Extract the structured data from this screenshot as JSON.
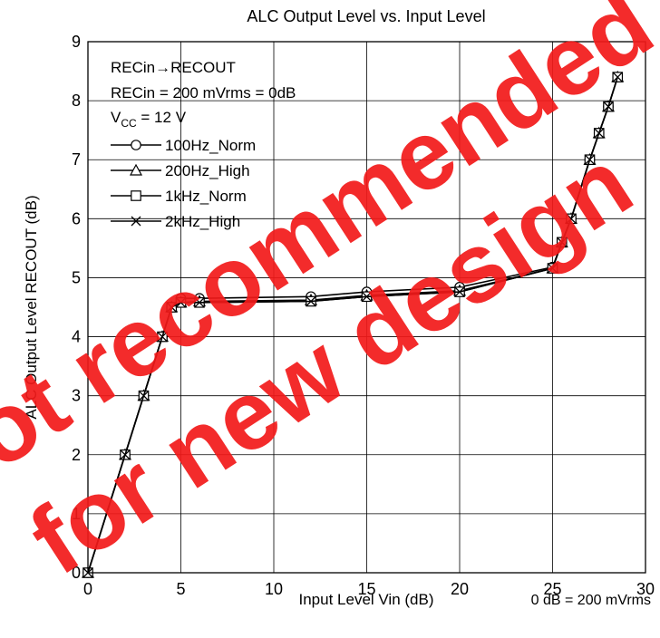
{
  "chart_data": {
    "type": "line",
    "title": "ALC Output Level vs. Input Level",
    "xlabel": "Input Level  Vin  (dB)",
    "xnote": "0 dB = 200 mVrms",
    "ylabel": "ALC Output Level  RECOUT  (dB)",
    "xlim": [
      0,
      30
    ],
    "ylim": [
      0,
      9
    ],
    "xticks": [
      0,
      5,
      10,
      15,
      20,
      25,
      30
    ],
    "yticks": [
      0,
      1,
      2,
      3,
      4,
      5,
      6,
      7,
      8,
      9
    ],
    "grid": true,
    "legend_position": "top-left",
    "conditions": {
      "line1": "RECin→RECOUT",
      "line2": "RECin = 200 mVrms = 0dB",
      "vcc_main": "V",
      "vcc_sub": "CC",
      "vcc_rest": " = 12 V"
    },
    "series": [
      {
        "name": "100Hz_Norm",
        "marker": "circle",
        "x": [
          0,
          2,
          3,
          4,
          4.5,
          5,
          6,
          12,
          15,
          20,
          25,
          25.5,
          26,
          27,
          27.5,
          28,
          28.5
        ],
        "y": [
          0,
          2.0,
          3.0,
          4.0,
          4.5,
          4.65,
          4.65,
          4.68,
          4.76,
          4.84,
          5.18,
          5.6,
          6.0,
          7.0,
          7.45,
          7.9,
          8.4
        ]
      },
      {
        "name": "200Hz_High",
        "marker": "triangle",
        "x": [
          0,
          2,
          3,
          4,
          4.5,
          5,
          6,
          12,
          15,
          20,
          25,
          25.5,
          26,
          27,
          27.5,
          28,
          28.5
        ],
        "y": [
          0,
          2.0,
          3.0,
          4.0,
          4.5,
          4.58,
          4.6,
          4.62,
          4.7,
          4.78,
          5.16,
          5.6,
          6.0,
          7.0,
          7.45,
          7.9,
          8.4
        ]
      },
      {
        "name": "1kHz_Norm",
        "marker": "square",
        "x": [
          0,
          2,
          3,
          4,
          4.5,
          5,
          6,
          12,
          15,
          20,
          25,
          25.5,
          26,
          27,
          27.5,
          28,
          28.5
        ],
        "y": [
          0,
          2.0,
          3.0,
          4.0,
          4.5,
          4.58,
          4.58,
          4.6,
          4.68,
          4.76,
          5.16,
          5.6,
          6.0,
          7.0,
          7.45,
          7.9,
          8.4
        ]
      },
      {
        "name": "2kHz_High",
        "marker": "x",
        "x": [
          0,
          2,
          3,
          4,
          4.5,
          5,
          6,
          12,
          15,
          20,
          25,
          25.5,
          26,
          27,
          27.5,
          28,
          28.5
        ],
        "y": [
          0,
          2.0,
          3.0,
          4.0,
          4.5,
          4.58,
          4.58,
          4.6,
          4.68,
          4.76,
          5.16,
          5.6,
          6.0,
          7.0,
          7.45,
          7.9,
          8.4
        ]
      }
    ]
  },
  "watermark": {
    "line1": "Not recommended",
    "line2": "for new design",
    "color": "#f21a1a"
  }
}
